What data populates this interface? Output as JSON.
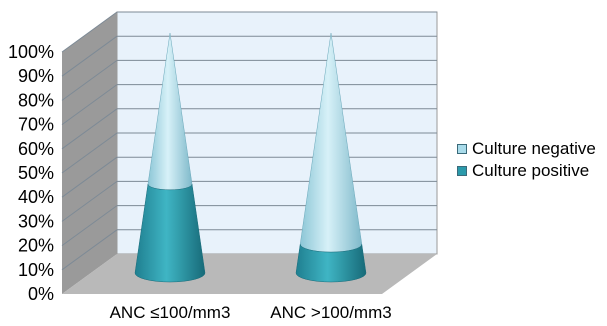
{
  "chart_data": {
    "type": "bar",
    "shape": "cone",
    "stacked": true,
    "three_d": true,
    "categories": [
      "ANC ≤100/mm3",
      "ANC >100/mm3"
    ],
    "series": [
      {
        "name": "Culture positive",
        "values": [
          37,
          12
        ],
        "color": "#2b9aab"
      },
      {
        "name": "Culture negative",
        "values": [
          63,
          88
        ],
        "color": "#a9dbea"
      }
    ],
    "yticks": [
      "0%",
      "10%",
      "20%",
      "30%",
      "40%",
      "50%",
      "60%",
      "70%",
      "80%",
      "90%",
      "100%"
    ],
    "ylim": [
      0,
      100
    ],
    "grid": true,
    "legend_position": "right"
  }
}
